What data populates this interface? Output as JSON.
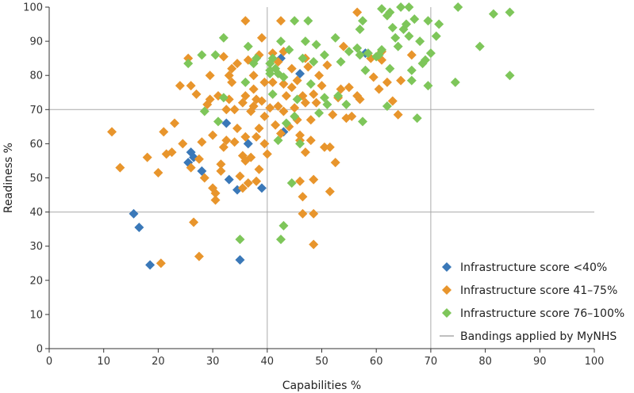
{
  "chart_data": {
    "type": "scatter",
    "title": "",
    "xlabel": "Capabilities %",
    "ylabel": "Readiness %",
    "xlim": [
      0,
      100
    ],
    "ylim": [
      0,
      100
    ],
    "x_ticks": [
      0,
      10,
      20,
      30,
      40,
      50,
      60,
      70,
      80,
      90,
      100
    ],
    "y_ticks": [
      0,
      10,
      20,
      30,
      40,
      50,
      60,
      70,
      80,
      90,
      100
    ],
    "grid": false,
    "legend_position": "bottom-right",
    "bandings": {
      "name": "Bandings applied by MyNHS",
      "color": "#aaaaaa",
      "x": [
        40,
        70
      ],
      "y": [
        40,
        70
      ]
    },
    "series": [
      {
        "name": "Infrastructure score <40%",
        "color": "#3a78b8",
        "points": [
          [
            15.5,
            39.5
          ],
          [
            16.5,
            35.5
          ],
          [
            18.5,
            24.5
          ],
          [
            25.5,
            54.5
          ],
          [
            26,
            57.5
          ],
          [
            26.5,
            56
          ],
          [
            28,
            52
          ],
          [
            32.5,
            66
          ],
          [
            33,
            49.5
          ],
          [
            34.5,
            46.5
          ],
          [
            35,
            26
          ],
          [
            36.5,
            60
          ],
          [
            39,
            47
          ],
          [
            42.5,
            85
          ],
          [
            43,
            63.5
          ],
          [
            46,
            80.5
          ],
          [
            58,
            86.5
          ]
        ]
      },
      {
        "name": "Infrastructure score 41–75%",
        "color": "#e8952c",
        "points": [
          [
            11.5,
            63.5
          ],
          [
            13,
            53
          ],
          [
            18,
            56
          ],
          [
            20,
            51.5
          ],
          [
            20.5,
            25
          ],
          [
            21,
            63.5
          ],
          [
            21.5,
            57
          ],
          [
            22.5,
            57.5
          ],
          [
            23,
            66
          ],
          [
            24,
            77
          ],
          [
            24.5,
            60
          ],
          [
            25.5,
            85
          ],
          [
            26,
            77
          ],
          [
            26.5,
            37
          ],
          [
            26,
            53
          ],
          [
            27,
            74.5
          ],
          [
            27.5,
            55.5
          ],
          [
            27.5,
            27
          ],
          [
            28,
            60.5
          ],
          [
            28.5,
            50
          ],
          [
            29,
            71.5
          ],
          [
            29.5,
            80
          ],
          [
            29.5,
            73
          ],
          [
            30,
            62.5
          ],
          [
            30,
            47
          ],
          [
            30.5,
            43.5
          ],
          [
            30.5,
            45.5
          ],
          [
            31,
            74
          ],
          [
            31.5,
            52
          ],
          [
            31.5,
            54
          ],
          [
            32,
            59
          ],
          [
            32,
            85.5
          ],
          [
            32.5,
            70
          ],
          [
            32.5,
            61
          ],
          [
            33,
            80
          ],
          [
            33,
            73
          ],
          [
            33.5,
            82
          ],
          [
            33.5,
            78
          ],
          [
            34,
            70
          ],
          [
            34,
            60.5
          ],
          [
            34.5,
            64.5
          ],
          [
            34.5,
            83.5
          ],
          [
            35,
            50.5
          ],
          [
            35.5,
            47
          ],
          [
            35.5,
            56.5
          ],
          [
            35.5,
            72
          ],
          [
            36,
            74
          ],
          [
            36,
            96
          ],
          [
            36,
            62
          ],
          [
            36,
            55
          ],
          [
            36.5,
            84.5
          ],
          [
            36.5,
            48.5
          ],
          [
            37,
            69.5
          ],
          [
            37,
            56
          ],
          [
            37.5,
            76
          ],
          [
            37.5,
            80
          ],
          [
            37.5,
            71
          ],
          [
            38,
            62
          ],
          [
            38,
            73
          ],
          [
            38,
            49
          ],
          [
            38.5,
            64.5
          ],
          [
            38.5,
            52.5
          ],
          [
            38.5,
            86
          ],
          [
            39,
            91
          ],
          [
            39,
            72.5
          ],
          [
            39.5,
            60
          ],
          [
            39.5,
            78
          ],
          [
            39.5,
            68
          ],
          [
            40,
            57
          ],
          [
            40.5,
            70.5
          ],
          [
            41,
            86.5
          ],
          [
            41,
            78
          ],
          [
            41.5,
            65.5
          ],
          [
            42,
            84
          ],
          [
            42,
            71
          ],
          [
            42.5,
            63
          ],
          [
            42.5,
            96
          ],
          [
            43,
            87
          ],
          [
            43,
            77.5
          ],
          [
            43,
            69.5
          ],
          [
            43.5,
            74
          ],
          [
            44,
            65
          ],
          [
            44.5,
            82
          ],
          [
            44.5,
            76.5
          ],
          [
            45,
            70.5
          ],
          [
            45.5,
            67
          ],
          [
            45.5,
            78.5
          ],
          [
            46,
            62.5
          ],
          [
            46,
            61
          ],
          [
            46,
            49
          ],
          [
            46.5,
            74
          ],
          [
            46.5,
            44.5
          ],
          [
            46.5,
            39.5
          ],
          [
            47,
            85
          ],
          [
            47,
            72
          ],
          [
            47,
            57.5
          ],
          [
            47.5,
            82.5
          ],
          [
            48,
            67
          ],
          [
            48,
            61
          ],
          [
            48.5,
            74.5
          ],
          [
            48.5,
            49.5
          ],
          [
            48.5,
            39.5
          ],
          [
            48.5,
            30.5
          ],
          [
            49,
            72
          ],
          [
            49.5,
            80
          ],
          [
            50,
            77
          ],
          [
            50.5,
            59
          ],
          [
            51,
            83
          ],
          [
            51.5,
            46
          ],
          [
            51.5,
            59
          ],
          [
            52,
            68.5
          ],
          [
            52.5,
            54.5
          ],
          [
            53,
            73.5
          ],
          [
            53.5,
            76
          ],
          [
            54,
            88.5
          ],
          [
            54.5,
            67.5
          ],
          [
            55,
            76.5
          ],
          [
            55.5,
            68
          ],
          [
            56.5,
            98.5
          ],
          [
            56.5,
            74
          ],
          [
            57,
            73
          ],
          [
            59,
            85
          ],
          [
            59.5,
            79.5
          ],
          [
            60.5,
            76
          ],
          [
            61,
            87
          ],
          [
            61,
            84.5
          ],
          [
            62,
            78
          ],
          [
            63,
            72.5
          ],
          [
            64,
            68.5
          ],
          [
            64.5,
            78.5
          ],
          [
            66.5,
            86
          ]
        ]
      },
      {
        "name": "Infrastructure score 76–100%",
        "color": "#7ec65a",
        "points": [
          [
            25.5,
            83.5
          ],
          [
            28,
            86
          ],
          [
            28.5,
            69.5
          ],
          [
            30.5,
            86
          ],
          [
            31,
            66.5
          ],
          [
            32,
            91
          ],
          [
            32,
            73.5
          ],
          [
            35,
            32
          ],
          [
            36,
            78
          ],
          [
            36.5,
            88.5
          ],
          [
            37.5,
            83.5
          ],
          [
            38,
            85
          ],
          [
            40.5,
            80.5
          ],
          [
            40.5,
            81.5
          ],
          [
            40.5,
            83.5
          ],
          [
            41,
            74.5
          ],
          [
            41,
            85
          ],
          [
            41.5,
            82
          ],
          [
            42,
            80.5
          ],
          [
            42,
            61
          ],
          [
            42.5,
            90
          ],
          [
            42.5,
            32
          ],
          [
            43,
            79.5
          ],
          [
            43,
            36
          ],
          [
            43.5,
            66
          ],
          [
            44,
            87.5
          ],
          [
            44.5,
            48.5
          ],
          [
            45,
            96
          ],
          [
            45,
            68
          ],
          [
            45.5,
            73
          ],
          [
            46,
            60
          ],
          [
            46.5,
            85
          ],
          [
            47,
            90
          ],
          [
            47.5,
            96
          ],
          [
            48,
            77.5
          ],
          [
            48.5,
            84
          ],
          [
            49,
            89
          ],
          [
            49.5,
            69
          ],
          [
            50.5,
            86
          ],
          [
            50.5,
            73.5
          ],
          [
            51,
            71.5
          ],
          [
            52.5,
            91
          ],
          [
            53,
            74
          ],
          [
            53.5,
            84
          ],
          [
            54.5,
            71.5
          ],
          [
            55,
            87
          ],
          [
            56.5,
            88
          ],
          [
            57,
            93.5
          ],
          [
            57,
            86
          ],
          [
            57.5,
            96
          ],
          [
            57.5,
            66.5
          ],
          [
            58,
            81.5
          ],
          [
            58.5,
            86.5
          ],
          [
            60,
            85.5
          ],
          [
            60.5,
            86
          ],
          [
            61,
            87.5
          ],
          [
            61,
            99.5
          ],
          [
            62,
            71
          ],
          [
            62,
            97.5
          ],
          [
            62.5,
            98.5
          ],
          [
            62.5,
            82
          ],
          [
            63,
            94
          ],
          [
            63.5,
            91
          ],
          [
            64,
            88.5
          ],
          [
            64.5,
            100
          ],
          [
            65,
            93.5
          ],
          [
            65.5,
            95
          ],
          [
            66,
            100
          ],
          [
            66,
            91.5
          ],
          [
            66.5,
            81.5
          ],
          [
            66.5,
            78.5
          ],
          [
            67,
            96.5
          ],
          [
            67.5,
            67.5
          ],
          [
            68,
            90
          ],
          [
            68.5,
            83.5
          ],
          [
            69,
            84.5
          ],
          [
            69.5,
            77
          ],
          [
            69.5,
            96
          ],
          [
            70,
            86.5
          ],
          [
            71,
            91.5
          ],
          [
            71.5,
            95
          ],
          [
            74.5,
            78
          ],
          [
            75,
            100
          ],
          [
            79,
            88.5
          ],
          [
            81.5,
            98
          ],
          [
            84.5,
            98.5
          ],
          [
            84.5,
            80
          ]
        ]
      }
    ]
  }
}
